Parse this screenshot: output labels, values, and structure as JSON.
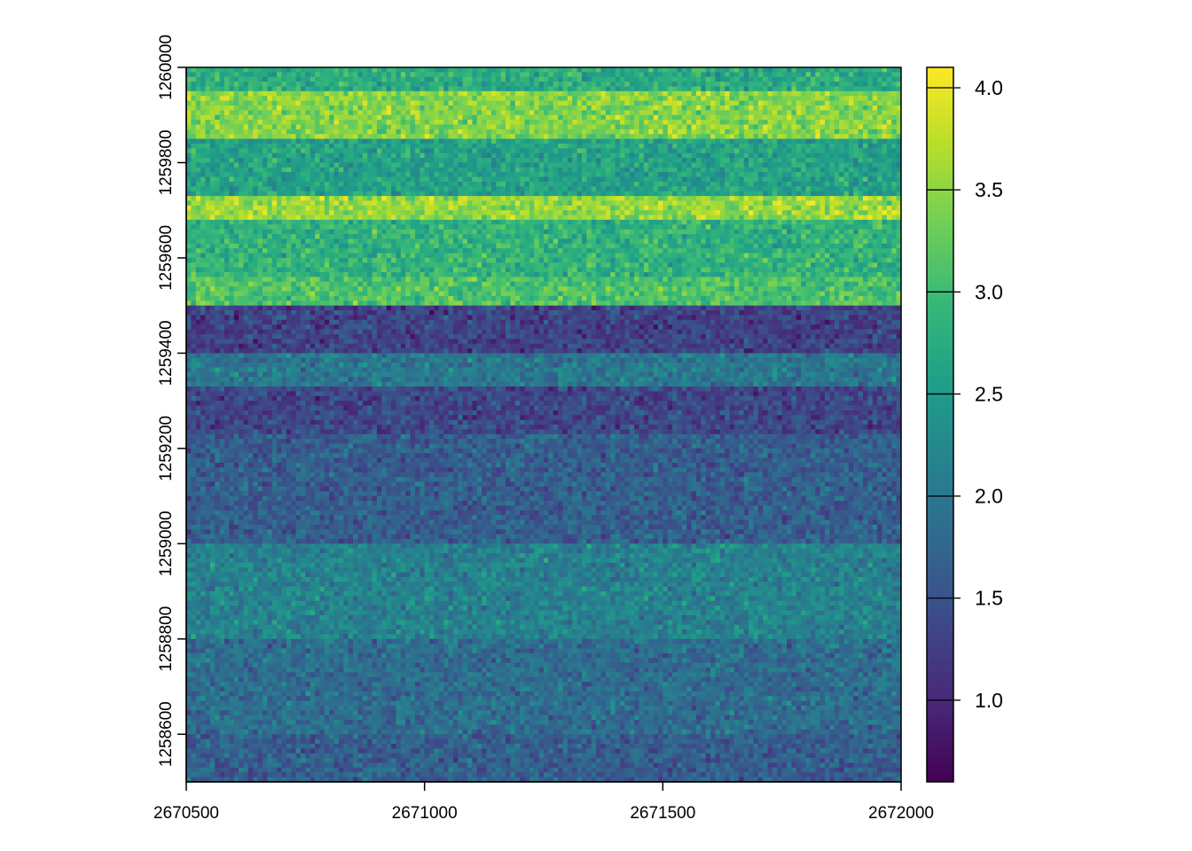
{
  "chart_data": {
    "type": "heatmap",
    "title": "",
    "xlabel": "",
    "ylabel": "",
    "xlim": [
      2670500,
      2672000
    ],
    "ylim": [
      1258500,
      1260000
    ],
    "x_ticks": [
      "2670500",
      "2671000",
      "2671500",
      "2672000"
    ],
    "y_ticks": [
      "1258600",
      "1258800",
      "1259000",
      "1259200",
      "1259400",
      "1259600",
      "1259800",
      "1260000"
    ],
    "colorbar": {
      "range": [
        0.6,
        4.1
      ],
      "ticks": [
        "1.0",
        "1.5",
        "2.0",
        "2.5",
        "3.0",
        "3.5",
        "4.0"
      ],
      "colormap": "viridis"
    },
    "grid": false,
    "legend_placement": "right",
    "bands": [
      {
        "y_from": 1259950,
        "y_to": 1260000,
        "mean": 2.75
      },
      {
        "y_from": 1259850,
        "y_to": 1259950,
        "mean": 3.45
      },
      {
        "y_from": 1259730,
        "y_to": 1259850,
        "mean": 2.6
      },
      {
        "y_from": 1259680,
        "y_to": 1259730,
        "mean": 3.55
      },
      {
        "y_from": 1259560,
        "y_to": 1259680,
        "mean": 2.85
      },
      {
        "y_from": 1259500,
        "y_to": 1259560,
        "mean": 3.1
      },
      {
        "y_from": 1259400,
        "y_to": 1259500,
        "mean": 1.3
      },
      {
        "y_from": 1259330,
        "y_to": 1259400,
        "mean": 2.0
      },
      {
        "y_from": 1259230,
        "y_to": 1259330,
        "mean": 1.35
      },
      {
        "y_from": 1259000,
        "y_to": 1259230,
        "mean": 1.65
      },
      {
        "y_from": 1258800,
        "y_to": 1259000,
        "mean": 2.15
      },
      {
        "y_from": 1258600,
        "y_to": 1258800,
        "mean": 1.85
      },
      {
        "y_from": 1258500,
        "y_to": 1258600,
        "mean": 1.65
      }
    ]
  }
}
